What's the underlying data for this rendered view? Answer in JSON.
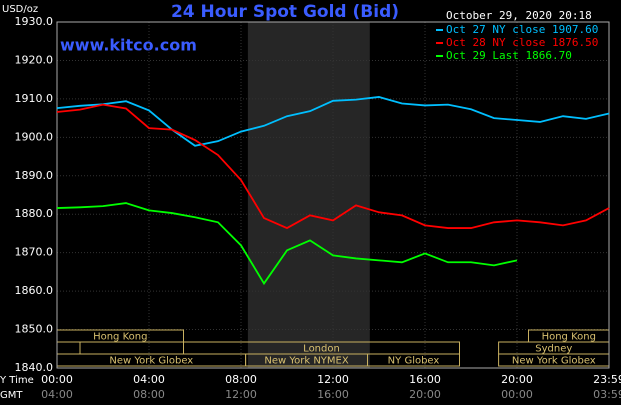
{
  "chart_data": {
    "type": "line",
    "title": "24 Hour Spot Gold (Bid)",
    "site": "www.kitco.com",
    "unit": "USD/oz",
    "timestamp": "October 29, 2020 20:18",
    "x_axis_label": "Y Time",
    "x2_axis_label": "GMT",
    "x": [
      0,
      1,
      2,
      3,
      4,
      5,
      6,
      7,
      8,
      9,
      10,
      11,
      12,
      13,
      14,
      15,
      16,
      17,
      18,
      19,
      20,
      21,
      22,
      23,
      24
    ],
    "xlim": [
      0,
      24
    ],
    "xticks": [
      {
        "value": 0,
        "label": "00:00"
      },
      {
        "value": 4,
        "label": "04:00"
      },
      {
        "value": 8,
        "label": "08:00"
      },
      {
        "value": 12,
        "label": "12:00"
      },
      {
        "value": 16,
        "label": "16:00"
      },
      {
        "value": 20,
        "label": "20:00"
      },
      {
        "value": 24,
        "label": "23:59"
      }
    ],
    "x2ticklabels": [
      "04:00",
      "08:00",
      "12:00",
      "16:00",
      "20:00",
      "00:00",
      "03:59"
    ],
    "ylim": [
      1840,
      1930
    ],
    "yticks": [
      {
        "value": 1840,
        "label": "1840.0"
      },
      {
        "value": 1850,
        "label": "1850.0"
      },
      {
        "value": 1860,
        "label": "1860.0"
      },
      {
        "value": 1870,
        "label": "1870.0"
      },
      {
        "value": 1880,
        "label": "1880.0"
      },
      {
        "value": 1890,
        "label": "1890.0"
      },
      {
        "value": 1900,
        "label": "1900.0"
      },
      {
        "value": 1910,
        "label": "1910.0"
      },
      {
        "value": 1920,
        "label": "1920.0"
      },
      {
        "value": 1930,
        "label": "1930.0"
      }
    ],
    "grid": true,
    "shaded_x": [
      8.3,
      13.6
    ],
    "series": [
      {
        "name": "Oct 27 NY close 1907.60",
        "color": "#00bfff",
        "values": [
          1907.6,
          1908.2,
          1908.6,
          1909.4,
          1907.0,
          1902.0,
          1897.8,
          1899.0,
          1901.5,
          1903.0,
          1905.5,
          1906.8,
          1909.5,
          1909.8,
          1910.5,
          1908.8,
          1908.3,
          1908.5,
          1907.3,
          1905.0,
          1904.5,
          1904.0,
          1905.5,
          1904.8,
          1906.2
        ]
      },
      {
        "name": "Oct 28 NY close 1876.50",
        "color": "#ff0000",
        "values": [
          1906.6,
          1907.2,
          1908.5,
          1907.5,
          1902.4,
          1902.0,
          1899.3,
          1895.4,
          1888.9,
          1879.0,
          1876.4,
          1879.7,
          1878.4,
          1882.3,
          1880.5,
          1879.7,
          1877.1,
          1876.4,
          1876.4,
          1877.9,
          1878.4,
          1877.9,
          1877.1,
          1878.4,
          1881.6
        ]
      },
      {
        "name": "Oct 29 Last 1866.70",
        "color": "#00ff00",
        "values": [
          1881.6,
          1881.8,
          1882.1,
          1882.9,
          1881.0,
          1880.3,
          1879.2,
          1877.9,
          1871.9,
          1862.0,
          1870.6,
          1873.2,
          1869.3,
          1868.5,
          1868.0,
          1867.5,
          1869.8,
          1867.5,
          1867.5,
          1866.7,
          1868.0,
          null,
          null,
          null,
          null
        ]
      }
    ],
    "sessions": [
      {
        "label": "Hong Kong",
        "row": 1,
        "start": 0,
        "end": 5.5
      },
      {
        "label": "Hong Kong",
        "row": 1,
        "start": 20.5,
        "end": 24
      },
      {
        "label": null,
        "row": 2,
        "start": 0,
        "end": 1
      },
      {
        "label": "London",
        "row": 2,
        "start": 5.5,
        "end": 17.5
      },
      {
        "label": "Sydney",
        "row": 2,
        "start": 19.2,
        "end": 24
      },
      {
        "label": "New York Globex",
        "row": 3,
        "start": 0,
        "end": 8.2
      },
      {
        "label": "New York NYMEX",
        "row": 3,
        "start": 8.2,
        "end": 13.5
      },
      {
        "label": "NY Globex",
        "row": 3,
        "start": 13.5,
        "end": 17.5
      },
      {
        "label": "New York Globex",
        "row": 3,
        "start": 19.2,
        "end": 24
      }
    ]
  }
}
